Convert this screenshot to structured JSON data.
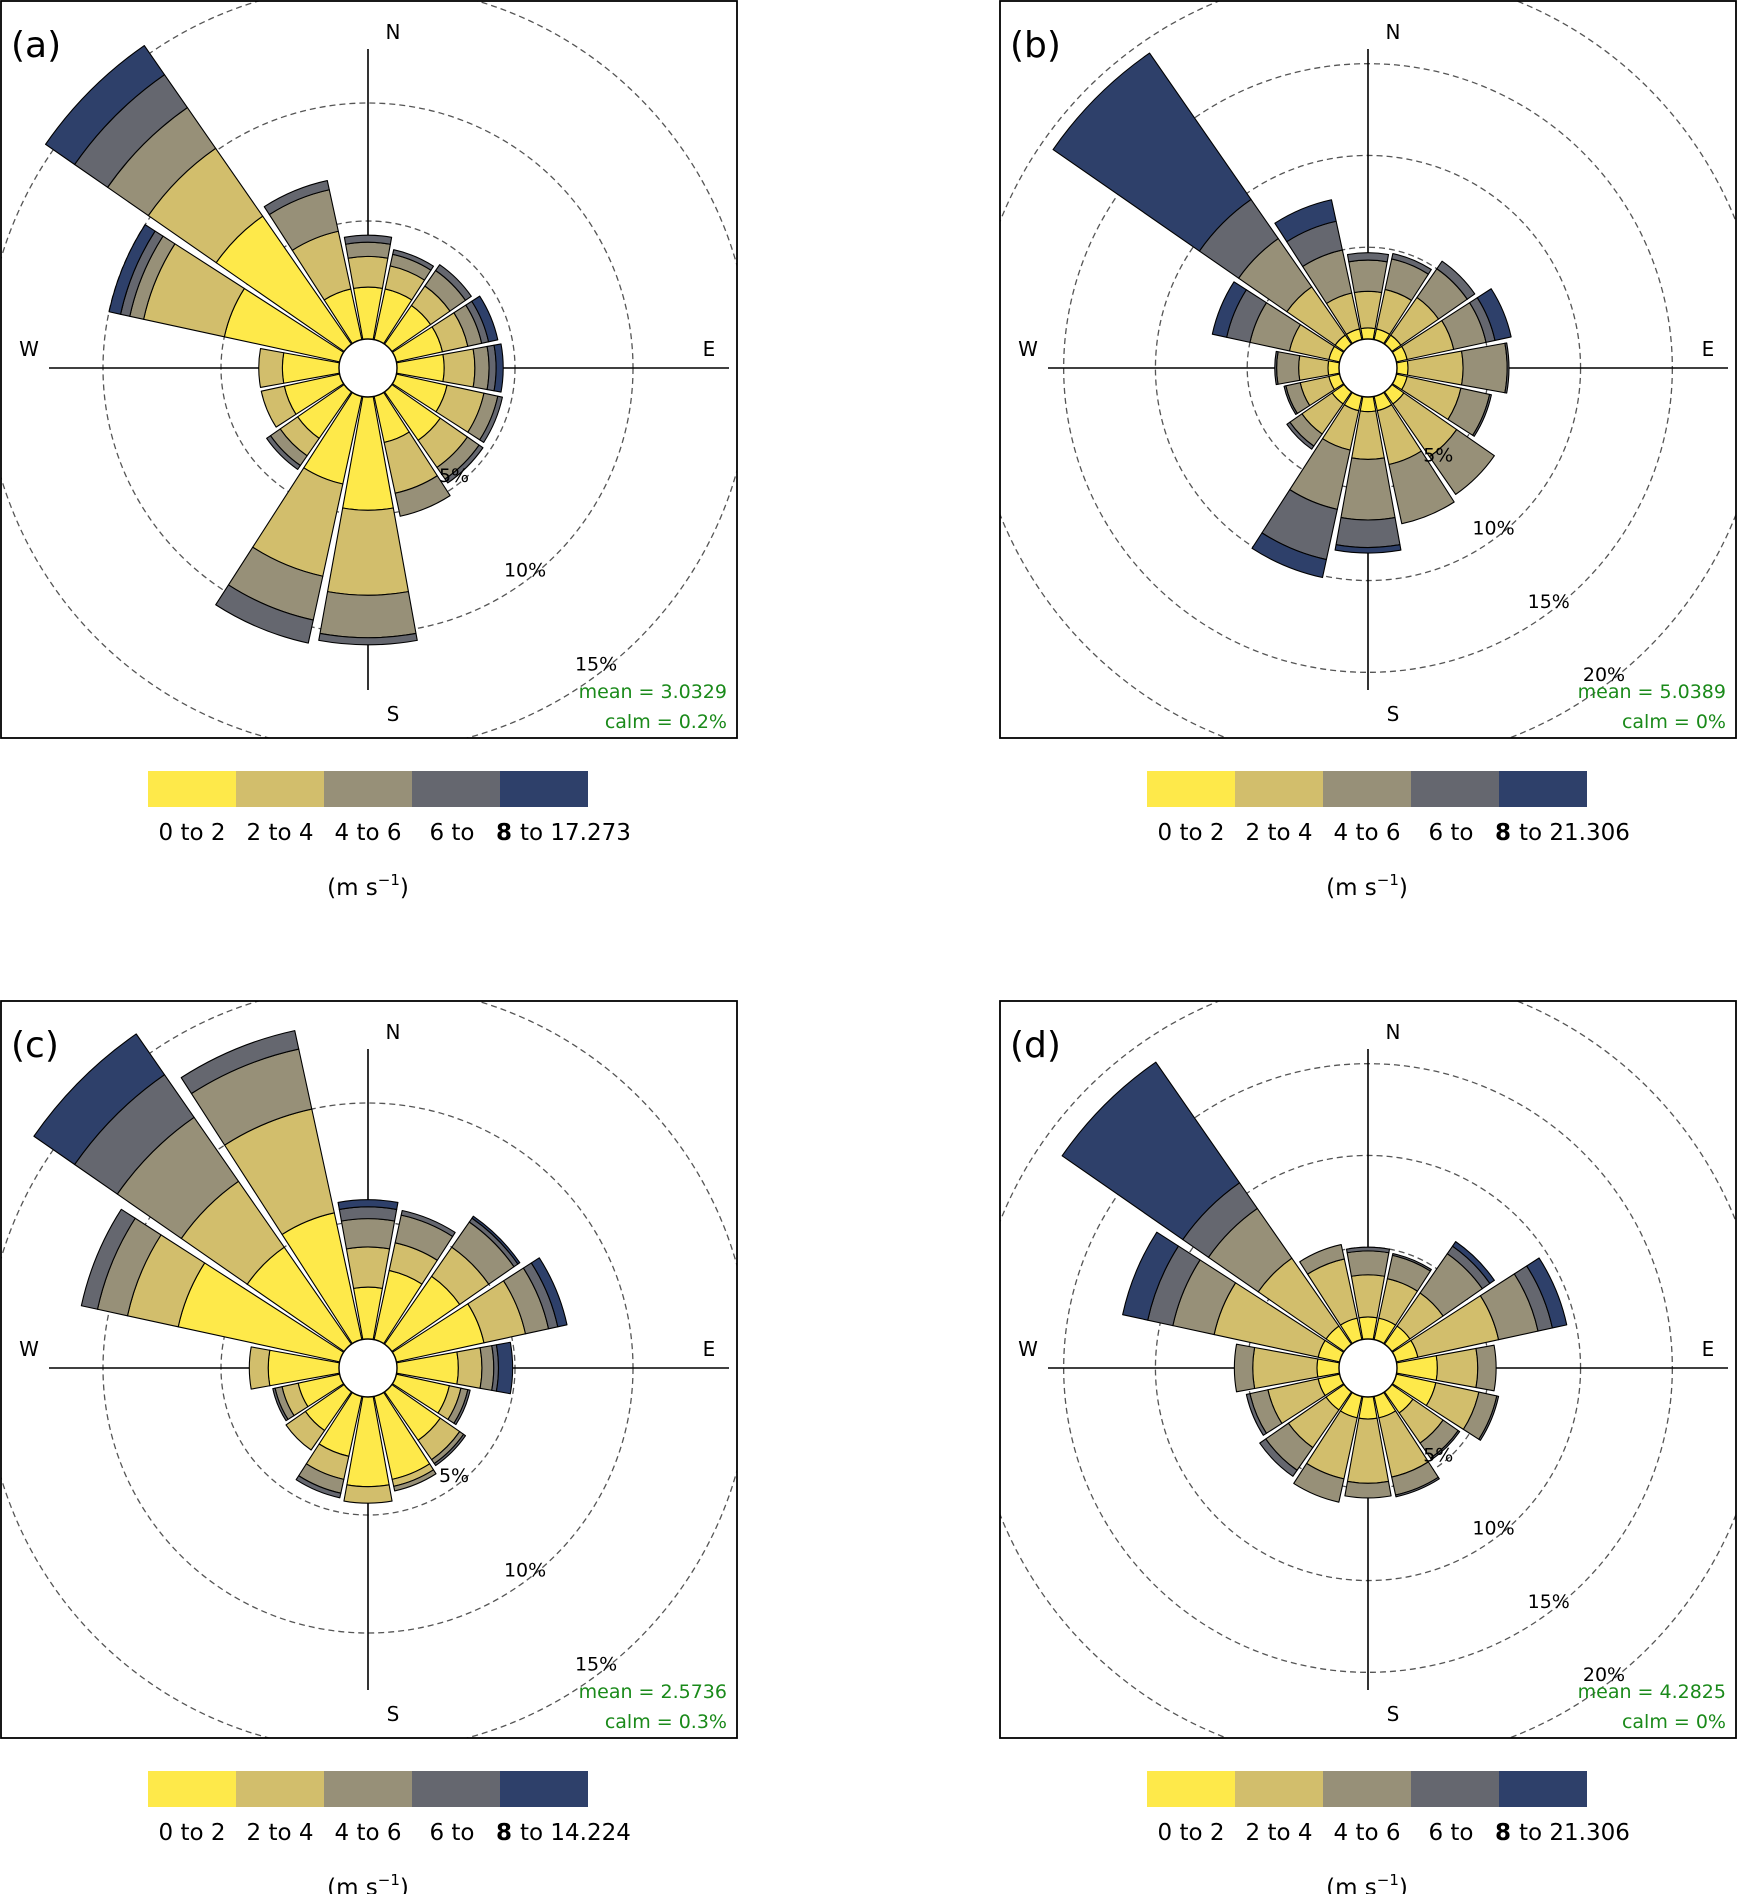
{
  "palette": [
    "#FEE94A",
    "#D2BE6C",
    "#979078",
    "#65676F",
    "#2E406A"
  ],
  "unit_label": "(m s",
  "unit_exp": "−1",
  "unit_close": ")",
  "chart_data": [
    {
      "type": "windrose",
      "panel_label": "(a)",
      "compass": {
        "N": "N",
        "E": "E",
        "S": "S",
        "W": "W"
      },
      "rings": [
        5,
        10,
        15
      ],
      "ring_labels": [
        "5%",
        "10%",
        "15%"
      ],
      "max_radius_pct": 17.5,
      "directions_deg": [
        0,
        22.5,
        45,
        67.5,
        90,
        112.5,
        135,
        157.5,
        180,
        202.5,
        225,
        247.5,
        270,
        292.5,
        315,
        337.5
      ],
      "series": [
        {
          "name": "0 to 2",
          "values": [
            2.2,
            2.2,
            2.0,
            2.0,
            2.0,
            2.2,
            2.5,
            2.0,
            4.8,
            3.8,
            2.4,
            2.4,
            2.4,
            5.0,
            6.6,
            2.2
          ]
        },
        {
          "name": "2 to 4",
          "values": [
            1.3,
            1.0,
            1.0,
            1.1,
            1.3,
            1.6,
            1.4,
            2.2,
            3.6,
            4.0,
            0.9,
            1.0,
            1.0,
            3.5,
            3.5,
            2.5
          ]
        },
        {
          "name": "4 to 6",
          "values": [
            0.6,
            0.5,
            0.8,
            0.6,
            0.6,
            0.6,
            0.6,
            1.0,
            1.8,
            1.9,
            0.5,
            0.0,
            0.0,
            0.6,
            2.1,
            1.8
          ]
        },
        {
          "name": "6 to 8",
          "values": [
            0.3,
            0.2,
            0.3,
            0.3,
            0.3,
            0.2,
            0.2,
            0.0,
            0.3,
            1.0,
            0.2,
            0.0,
            0.0,
            0.4,
            1.7,
            0.4
          ]
        },
        {
          "name": "8 to 17.273",
          "values": [
            0.0,
            0.0,
            0.0,
            0.4,
            0.3,
            0.0,
            0.0,
            0.0,
            0.0,
            0.0,
            0.0,
            0.0,
            0.0,
            0.5,
            1.5,
            0.0
          ]
        }
      ],
      "mean_label": "mean = 3.0329",
      "calm_label": "calm = 0.2%",
      "legend_labels": [
        "0 to 2",
        "2 to 4",
        "4 to 6",
        "6 to",
        "8",
        "to 17.273"
      ]
    },
    {
      "type": "windrose",
      "panel_label": "(b)",
      "compass": {
        "N": "N",
        "E": "E",
        "S": "S",
        "W": "W"
      },
      "rings": [
        5,
        10,
        15,
        20
      ],
      "ring_labels": [
        "5%",
        "10%",
        "15%",
        "20%"
      ],
      "max_radius_pct": 22.5,
      "directions_deg": [
        0,
        22.5,
        45,
        67.5,
        90,
        112.5,
        135,
        157.5,
        180,
        202.5,
        225,
        247.5,
        270,
        292.5,
        315,
        337.5
      ],
      "series": [
        {
          "name": "0 to 2",
          "values": [
            0.6,
            0.6,
            0.6,
            0.6,
            0.6,
            0.6,
            0.8,
            0.8,
            0.8,
            0.8,
            0.8,
            0.6,
            0.6,
            0.6,
            0.6,
            0.6
          ]
        },
        {
          "name": "2 to 4",
          "values": [
            2.0,
            2.2,
            2.5,
            2.6,
            3.0,
            3.0,
            3.5,
            3.0,
            2.6,
            2.2,
            2.0,
            1.6,
            1.6,
            2.2,
            3.2,
            2.0
          ]
        },
        {
          "name": "4 to 6",
          "values": [
            1.7,
            1.7,
            1.9,
            1.8,
            2.4,
            1.6,
            2.5,
            3.3,
            3.3,
            3.3,
            0.8,
            0.8,
            1.2,
            2.2,
            3.2,
            2.4
          ]
        },
        {
          "name": "6 to 8",
          "values": [
            0.4,
            0.3,
            0.5,
            0.5,
            0.1,
            0.1,
            0.0,
            0.0,
            1.5,
            2.8,
            0.2,
            0.1,
            0.1,
            1.3,
            2.6,
            1.6
          ]
        },
        {
          "name": "8 to 21.306",
          "values": [
            0.0,
            0.0,
            0.0,
            0.9,
            0.0,
            0.0,
            0.0,
            0.0,
            0.3,
            1.0,
            0.0,
            0.0,
            0.0,
            0.8,
            9.7,
            1.2
          ]
        }
      ],
      "mean_label": "mean = 5.0389",
      "calm_label": "calm = 0%",
      "legend_labels": [
        "0 to 2",
        "2 to 4",
        "4 to 6",
        "6 to",
        "8",
        "to 21.306"
      ]
    },
    {
      "type": "windrose",
      "panel_label": "(c)",
      "compass": {
        "N": "N",
        "E": "E",
        "S": "S",
        "W": "W"
      },
      "rings": [
        5,
        10,
        15
      ],
      "ring_labels": [
        "5%",
        "10%",
        "15%"
      ],
      "max_radius_pct": 17.5,
      "directions_deg": [
        0,
        22.5,
        45,
        67.5,
        90,
        112.5,
        135,
        157.5,
        180,
        202.5,
        225,
        247.5,
        270,
        292.5,
        315,
        337.5
      ],
      "series": [
        {
          "name": "0 to 2",
          "values": [
            2.2,
            3.0,
            3.5,
            3.8,
            2.6,
            2.3,
            2.5,
            3.6,
            3.8,
            2.6,
            2.0,
            1.8,
            3.0,
            7.0,
            5.0,
            5.5
          ]
        },
        {
          "name": "2 to 4",
          "values": [
            1.7,
            1.2,
            1.5,
            1.8,
            1.0,
            0.5,
            1.0,
            0.3,
            0.7,
            1.0,
            1.0,
            0.7,
            0.8,
            2.2,
            3.4,
            4.5
          ]
        },
        {
          "name": "4 to 6",
          "values": [
            1.2,
            1.2,
            1.3,
            1.0,
            0.5,
            0.3,
            0.2,
            0.2,
            0.0,
            0.6,
            0.0,
            0.3,
            0.0,
            1.3,
            3.3,
            2.6
          ]
        },
        {
          "name": "6 to 8",
          "values": [
            0.5,
            0.2,
            0.2,
            0.4,
            0.2,
            0.1,
            0.1,
            0.0,
            0.0,
            0.2,
            0.0,
            0.1,
            0.0,
            0.7,
            2.2,
            0.8
          ]
        },
        {
          "name": "8 to 14.224",
          "values": [
            0.3,
            0.0,
            0.1,
            0.4,
            0.6,
            0.0,
            0.0,
            0.0,
            0.0,
            0.0,
            0.0,
            0.0,
            0.0,
            0.0,
            2.1,
            0.0
          ]
        }
      ],
      "mean_label": "mean = 2.5736",
      "calm_label": "calm = 0.3%",
      "legend_labels": [
        "0 to 2",
        "2 to 4",
        "4 to 6",
        "6 to",
        "8",
        "to 14.224"
      ]
    },
    {
      "type": "windrose",
      "panel_label": "(d)",
      "compass": {
        "N": "N",
        "E": "E",
        "S": "S",
        "W": "W"
      },
      "rings": [
        5,
        10,
        15,
        20
      ],
      "ring_labels": [
        "5%",
        "10%",
        "15%",
        "20%"
      ],
      "max_radius_pct": 22.5,
      "directions_deg": [
        0,
        22.5,
        45,
        67.5,
        90,
        112.5,
        135,
        157.5,
        180,
        202.5,
        225,
        247.5,
        270,
        292.5,
        315,
        337.5
      ],
      "series": [
        {
          "name": "0 to 2",
          "values": [
            1.2,
            1.2,
            1.2,
            1.2,
            2.2,
            2.2,
            1.4,
            1.2,
            1.2,
            1.2,
            1.2,
            1.2,
            1.2,
            1.2,
            1.2,
            1.2
          ]
        },
        {
          "name": "2 to 4",
          "values": [
            2.3,
            2.2,
            2.2,
            4.5,
            2.2,
            2.4,
            2.0,
            3.3,
            3.5,
            3.4,
            2.5,
            2.8,
            3.5,
            5.8,
            4.5,
            3.3
          ]
        },
        {
          "name": "4 to 6",
          "values": [
            1.3,
            1.3,
            2.6,
            2.2,
            1.0,
            1.0,
            1.0,
            1.0,
            0.8,
            1.3,
            1.5,
            1.0,
            1.0,
            2.3,
            3.3,
            0.8
          ]
        },
        {
          "name": "6 to 8",
          "values": [
            0.2,
            0.1,
            0.5,
            0.8,
            0.0,
            0.1,
            0.1,
            0.1,
            0.0,
            0.0,
            0.4,
            0.2,
            0.0,
            1.4,
            1.7,
            0.0
          ]
        },
        {
          "name": "8 to 21.306",
          "values": [
            0.0,
            0.0,
            0.3,
            0.8,
            0.0,
            0.0,
            0.0,
            0.0,
            0.0,
            0.0,
            0.0,
            0.0,
            0.0,
            1.4,
            8.0,
            0.0
          ]
        }
      ],
      "mean_label": "mean = 4.2825",
      "calm_label": "calm = 0%",
      "legend_labels": [
        "0 to 2",
        "2 to 4",
        "4 to 6",
        "6 to",
        "8",
        "to 21.306"
      ]
    }
  ]
}
